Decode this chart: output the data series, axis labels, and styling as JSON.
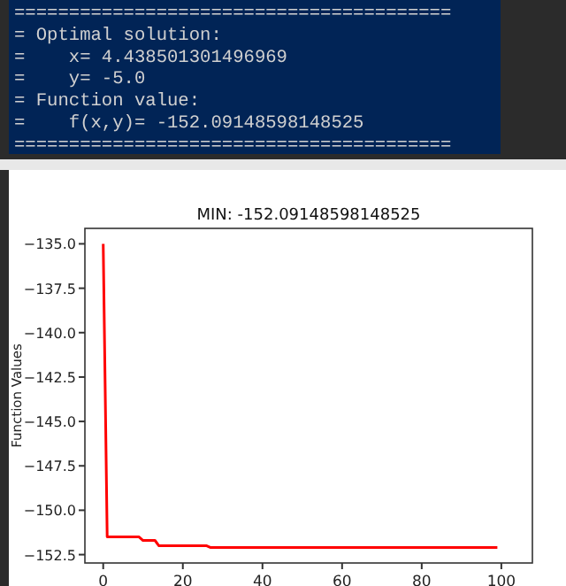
{
  "chart_data": {
    "type": "line",
    "title": "MIN: -152.09148598148525",
    "ylabel": "Function Values",
    "annotations": [
      "========================================",
      "= Optimal solution:",
      "=    x= 4.438501301496969",
      "=    y= -5.0",
      "= Function value:",
      "=    f(x,y)= -152.09148598148525",
      "========================================"
    ],
    "x": [
      0,
      1,
      9,
      10,
      13,
      14,
      26,
      27,
      99
    ],
    "series": [
      {
        "color": "#ff0000",
        "values": [
          -135,
          -151.5,
          -151.5,
          -151.7,
          -151.7,
          -152.0,
          -152.0,
          -152.1,
          -152.1
        ]
      }
    ],
    "xlim": [
      -4.6,
      107.8
    ],
    "ylim": [
      -152.97,
      -134.13
    ],
    "xticks": [
      0,
      20,
      40,
      60,
      80,
      100
    ],
    "yticks": [
      {
        "value": -135,
        "label": "−135.0"
      },
      {
        "value": -137.5,
        "label": "−137.5"
      },
      {
        "value": -140,
        "label": "−140.0"
      },
      {
        "value": -142.5,
        "label": "−142.5"
      },
      {
        "value": -145,
        "label": "−145.0"
      },
      {
        "value": -147.5,
        "label": "−147.5"
      },
      {
        "value": -150,
        "label": "−150.0"
      },
      {
        "value": -152.5,
        "label": "−152.5"
      }
    ],
    "grid": false,
    "marker": "none",
    "line_style": "solid"
  }
}
